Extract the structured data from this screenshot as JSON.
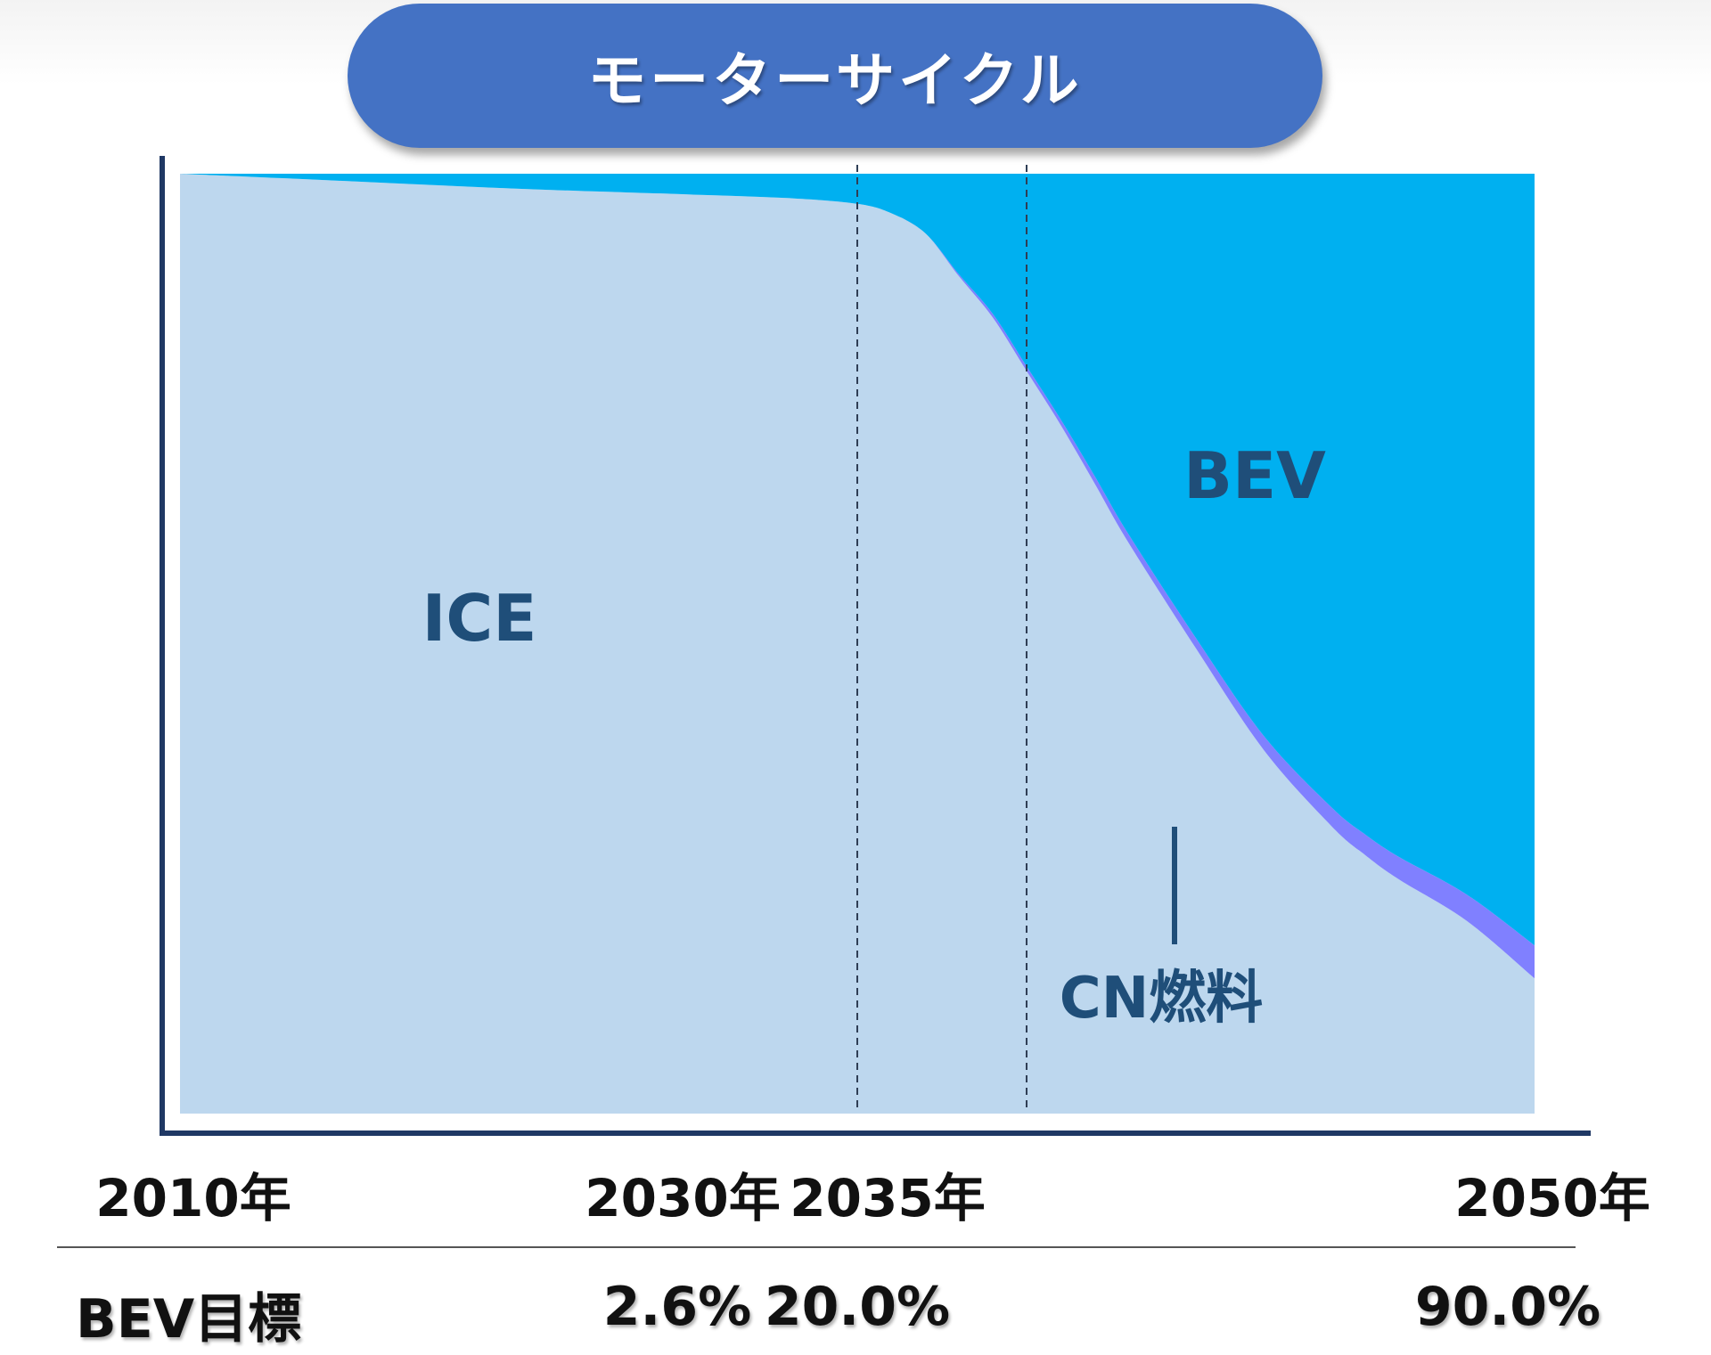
{
  "title": "モーターサイクル",
  "row_label": "BEV目標",
  "colors": {
    "title_bg": "#4472c4",
    "ice": "#bdd7ee",
    "cn_fuel": "#8080ff",
    "bev": "#00b0f0",
    "axis": "#1f3864",
    "label": "#1f4e79"
  },
  "chart_data": {
    "type": "area",
    "stacked": true,
    "percent": true,
    "x_range": [
      2010,
      2050
    ],
    "y_range": [
      0,
      100
    ],
    "tick_labels": [
      "2010年",
      "2030年",
      "2035年",
      "2050年"
    ],
    "tick_years": [
      2010,
      2030,
      2035,
      2050
    ],
    "reference_lines": [
      2030,
      2035
    ],
    "targets": [
      {
        "year": 2030,
        "label": "2.6%"
      },
      {
        "year": 2035,
        "label": "20.0%"
      },
      {
        "year": 2050,
        "label": "90.0%"
      }
    ],
    "area_labels": {
      "ice": "ICE",
      "bev": "BEV",
      "cn": "CN燃料"
    },
    "x": [
      2010,
      2015,
      2020,
      2025,
      2028,
      2030,
      2031,
      2032,
      2033,
      2034,
      2035,
      2036,
      2037,
      2038,
      2040,
      2042,
      2044,
      2045,
      2046,
      2048,
      2050
    ],
    "series": [
      {
        "key": "ice",
        "values": [
          100,
          99.2,
          98.4,
          97.8,
          97.4,
          96.8,
          95.8,
          93.7,
          89.1,
          84.7,
          79.0,
          73.3,
          67.1,
          60.8,
          49.5,
          38.7,
          30.6,
          27.5,
          24.9,
          20.5,
          14.4
        ]
      },
      {
        "key": "cn_fuel",
        "values": [
          0,
          0,
          0,
          0,
          0,
          0,
          0,
          0,
          0.2,
          0.4,
          0.5,
          0.6,
          0.8,
          0.9,
          1.1,
          1.5,
          2.0,
          2.2,
          2.4,
          2.8,
          3.5
        ]
      },
      {
        "key": "bev",
        "values": [
          0,
          0.8,
          1.6,
          2.2,
          2.6,
          3.2,
          4.2,
          6.3,
          10.7,
          14.9,
          20.5,
          26.1,
          32.1,
          38.3,
          49.4,
          59.8,
          67.4,
          70.3,
          72.7,
          76.7,
          82.1
        ]
      }
    ]
  }
}
